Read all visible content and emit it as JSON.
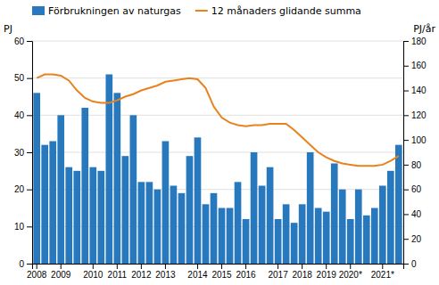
{
  "chart_data": {
    "type": "bar",
    "y_label": "PJ",
    "y2_label": "PJ/år",
    "categories": [
      "2008",
      null,
      null,
      "2009",
      null,
      null,
      null,
      "2010",
      null,
      null,
      "2011",
      null,
      null,
      "2012",
      null,
      null,
      "2013",
      null,
      null,
      null,
      "2014",
      null,
      null,
      "2015",
      null,
      null,
      "2016",
      null,
      null,
      null,
      "2017",
      null,
      null,
      "2018",
      null,
      null,
      "2019",
      null,
      null,
      "2020*",
      null,
      null,
      null,
      "2021*",
      null,
      null
    ],
    "series": [
      {
        "name": "Förbrukningen av naturgas",
        "type": "bar",
        "color": "#2878BE",
        "axis": "y",
        "values": [
          46,
          32,
          33,
          40,
          26,
          25,
          42,
          26,
          25,
          51,
          46,
          29,
          40,
          22,
          22,
          20,
          33,
          21,
          19,
          29,
          34,
          16,
          19,
          15,
          15,
          22,
          12,
          30,
          21,
          26,
          12,
          16,
          11,
          16,
          30,
          15,
          14,
          27,
          20,
          12,
          20,
          13,
          15,
          21,
          25,
          32
        ]
      },
      {
        "name": "12 månaders glidande summa",
        "type": "line",
        "color": "#E8821E",
        "axis": "y2",
        "values": [
          150,
          153,
          153,
          152,
          148,
          140,
          134,
          131,
          130,
          130,
          132,
          135,
          137,
          140,
          142,
          144,
          147,
          148,
          149,
          150,
          149,
          142,
          127,
          118,
          114,
          112,
          111,
          112,
          112,
          113,
          113,
          113,
          108,
          102,
          96,
          90,
          86,
          83,
          81,
          80,
          79,
          79,
          79,
          80,
          83,
          87
        ]
      }
    ],
    "ylim": [
      0,
      60
    ],
    "yticks": [
      0,
      10,
      20,
      30,
      40,
      50,
      60
    ],
    "y2lim": [
      0,
      180
    ],
    "y2ticks": [
      0,
      20,
      40,
      60,
      80,
      100,
      120,
      140,
      160,
      180
    ],
    "grid": true,
    "legend": "upper left"
  }
}
